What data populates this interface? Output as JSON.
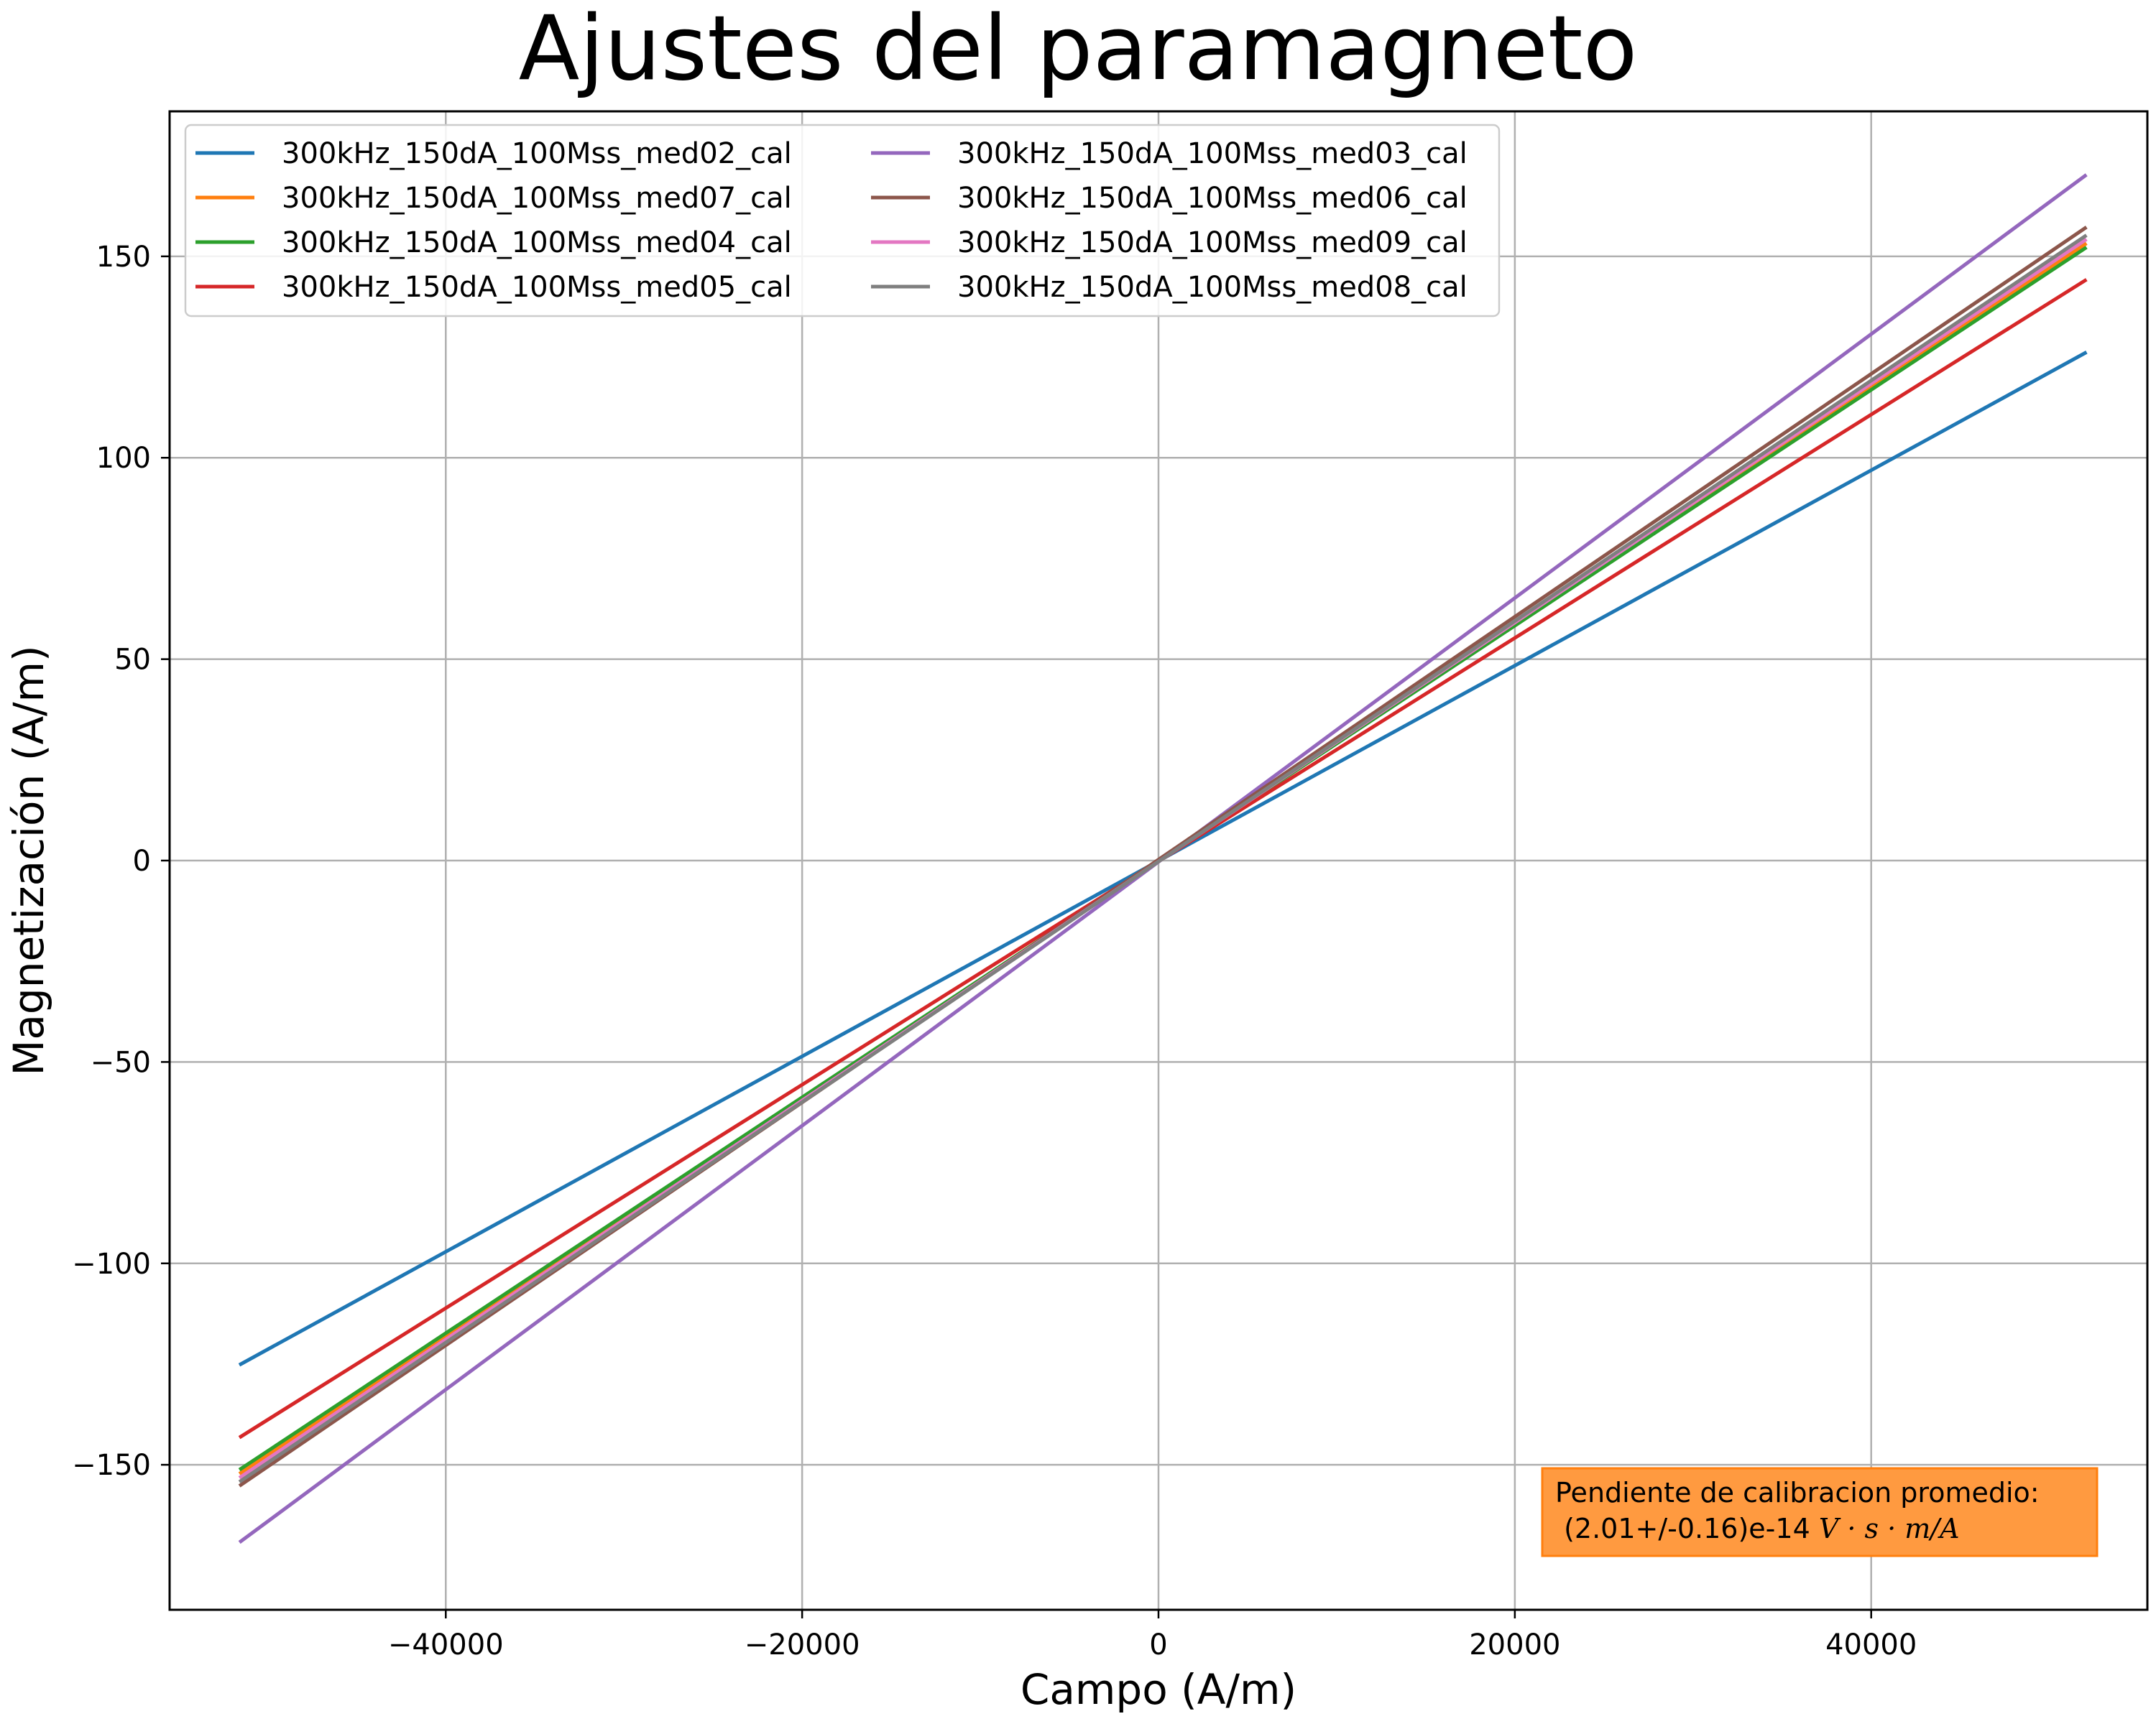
{
  "chart_data": {
    "type": "line",
    "title": "Ajustes del paramagneto",
    "xlabel": "Campo (A/m)",
    "ylabel": "Magnetización (A/m)",
    "xlim": [
      -55500,
      55500
    ],
    "ylim": [
      -186,
      186
    ],
    "xticks": [
      -40000,
      -20000,
      0,
      20000,
      40000
    ],
    "xtick_labels": [
      "−40000",
      "−20000",
      "0",
      "20000",
      "40000"
    ],
    "yticks": [
      -150,
      -100,
      -50,
      0,
      50,
      100,
      150
    ],
    "ytick_labels": [
      "−150",
      "−100",
      "−50",
      "0",
      "50",
      "100",
      "150"
    ],
    "grid": true,
    "legend_position": "upper-left",
    "legend_columns": 2,
    "series": [
      {
        "name": "300kHz_150dA_100Mss_med02_cal",
        "color": "#1f77b4",
        "x": [
          -51500,
          52000
        ],
        "y": [
          -125,
          126
        ]
      },
      {
        "name": "300kHz_150dA_100Mss_med07_cal",
        "color": "#ff7f0e",
        "x": [
          -51500,
          52000
        ],
        "y": [
          -152,
          153
        ]
      },
      {
        "name": "300kHz_150dA_100Mss_med04_cal",
        "color": "#2ca02c",
        "x": [
          -51500,
          52000
        ],
        "y": [
          -151,
          152
        ]
      },
      {
        "name": "300kHz_150dA_100Mss_med05_cal",
        "color": "#d62728",
        "x": [
          -51500,
          52000
        ],
        "y": [
          -143,
          144
        ]
      },
      {
        "name": "300kHz_150dA_100Mss_med03_cal",
        "color": "#9467bd",
        "x": [
          -51500,
          52000
        ],
        "y": [
          -169,
          170
        ]
      },
      {
        "name": "300kHz_150dA_100Mss_med06_cal",
        "color": "#8c564b",
        "x": [
          -51500,
          52000
        ],
        "y": [
          -155,
          157
        ]
      },
      {
        "name": "300kHz_150dA_100Mss_med09_cal",
        "color": "#e377c2",
        "x": [
          -51500,
          52000
        ],
        "y": [
          -153,
          154
        ]
      },
      {
        "name": "300kHz_150dA_100Mss_med08_cal",
        "color": "#7f7f7f",
        "x": [
          -51500,
          52000
        ],
        "y": [
          -154,
          155
        ]
      }
    ],
    "annotation": {
      "line1": "Pendiente de calibracion promedio:",
      "line2_value": " (2.01+/-0.16)e-14 ",
      "line2_units": "V · s · m/A",
      "position": "lower-right",
      "background_color": "#ff9a40",
      "border_color": "#ff7f0e"
    }
  }
}
